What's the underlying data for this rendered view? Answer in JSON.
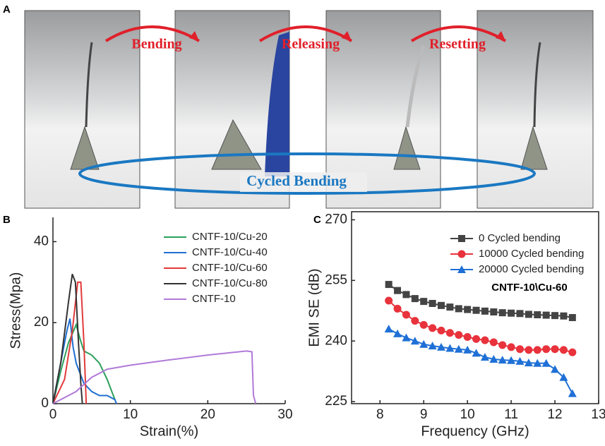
{
  "panel_a": {
    "label": "A",
    "arrows": [
      "Bending",
      "Releasing",
      "Resetting"
    ],
    "cycle_label": "Cycled Bending"
  },
  "chart_data": [
    {
      "type": "line",
      "panel_label": "B",
      "xlabel": "Strain(%)",
      "ylabel": "Stress(Mpa)",
      "xlim": [
        0,
        30
      ],
      "xticks": [
        0,
        10,
        20,
        30
      ],
      "ylim": [
        0,
        46
      ],
      "yticks": [
        0,
        20,
        40
      ],
      "box": false,
      "legend": "upper right",
      "series": [
        {
          "name": "CNTF-10/Cu-20",
          "color": "#2ca05a",
          "x": [
            0,
            1,
            2,
            3,
            3.5,
            4,
            5,
            6,
            7,
            7.8,
            8
          ],
          "values": [
            0,
            8,
            15,
            19.5,
            16,
            13,
            12,
            10,
            6,
            2,
            1
          ]
        },
        {
          "name": "CNTF-10/Cu-40",
          "color": "#1f6fd1",
          "x": [
            0,
            1,
            1.8,
            2.2,
            2.6,
            3,
            4,
            5,
            6,
            7,
            8,
            8.2
          ],
          "values": [
            0,
            10,
            18,
            21,
            14,
            10,
            5,
            3,
            2,
            2,
            1,
            0
          ]
        },
        {
          "name": "CNTF-10/Cu-60",
          "color": "#e23a3a",
          "x": [
            0,
            1.5,
            2.5,
            3.2,
            3.6,
            4,
            4.2,
            4.3
          ],
          "values": [
            0,
            6,
            18,
            30,
            30,
            15,
            5,
            0
          ]
        },
        {
          "name": "CNTF-10/Cu-80",
          "color": "#333333",
          "x": [
            0,
            1,
            2,
            2.5,
            2.9,
            3.3,
            3.6,
            3.8
          ],
          "values": [
            0,
            10,
            25,
            32,
            30,
            15,
            5,
            0
          ]
        },
        {
          "name": "CNTF-10",
          "color": "#b07ad8",
          "x": [
            0,
            3,
            5,
            7,
            10,
            15,
            20,
            25,
            25.7,
            25.9,
            26.2
          ],
          "values": [
            0,
            3,
            6.5,
            8.5,
            9.5,
            10.8,
            12,
            13,
            12.8,
            2,
            0
          ]
        }
      ]
    },
    {
      "type": "line",
      "panel_label": "C",
      "xlabel": "Frequency (GHz)",
      "ylabel": "EMI SE (dB)",
      "xlim": [
        7.35,
        13
      ],
      "xticks": [
        8,
        9,
        10,
        11,
        12,
        13
      ],
      "ylim": [
        224.5,
        272
      ],
      "yticks": [
        225,
        240,
        255,
        270
      ],
      "box": true,
      "legend": "upper right",
      "annotation": "CNTF-10\\Cu-60",
      "x": [
        8.2,
        8.4,
        8.6,
        8.8,
        9.0,
        9.2,
        9.4,
        9.6,
        9.8,
        10.0,
        10.2,
        10.4,
        10.6,
        10.8,
        11.0,
        11.2,
        11.4,
        11.6,
        11.8,
        12.0,
        12.2,
        12.4
      ],
      "series": [
        {
          "name": "0 Cycled bending",
          "color": "#444444",
          "marker": "square",
          "values": [
            254,
            252.5,
            251.5,
            250.5,
            249.8,
            249.3,
            248.8,
            248.4,
            248,
            247.8,
            247.6,
            247.4,
            247.2,
            247,
            246.9,
            246.8,
            246.6,
            246.5,
            246.4,
            246.3,
            246.2,
            245.8
          ]
        },
        {
          "name": "10000 Cycled bending",
          "color": "#e8323c",
          "marker": "circle",
          "values": [
            250,
            248,
            246.5,
            245,
            244,
            243.2,
            242.6,
            242,
            241.5,
            241,
            240.5,
            240.2,
            239.7,
            239,
            238.5,
            238,
            237.8,
            237.8,
            238,
            238,
            237.8,
            237.2
          ]
        },
        {
          "name": "20000 Cycled bending",
          "color": "#1f70d6",
          "marker": "triangle",
          "values": [
            243,
            241.8,
            240.8,
            240,
            239.2,
            238.8,
            238.5,
            238.2,
            238,
            237.8,
            237,
            236,
            235.5,
            235.3,
            235.2,
            235,
            234.6,
            234.5,
            234.5,
            233,
            231,
            227
          ]
        }
      ]
    }
  ]
}
